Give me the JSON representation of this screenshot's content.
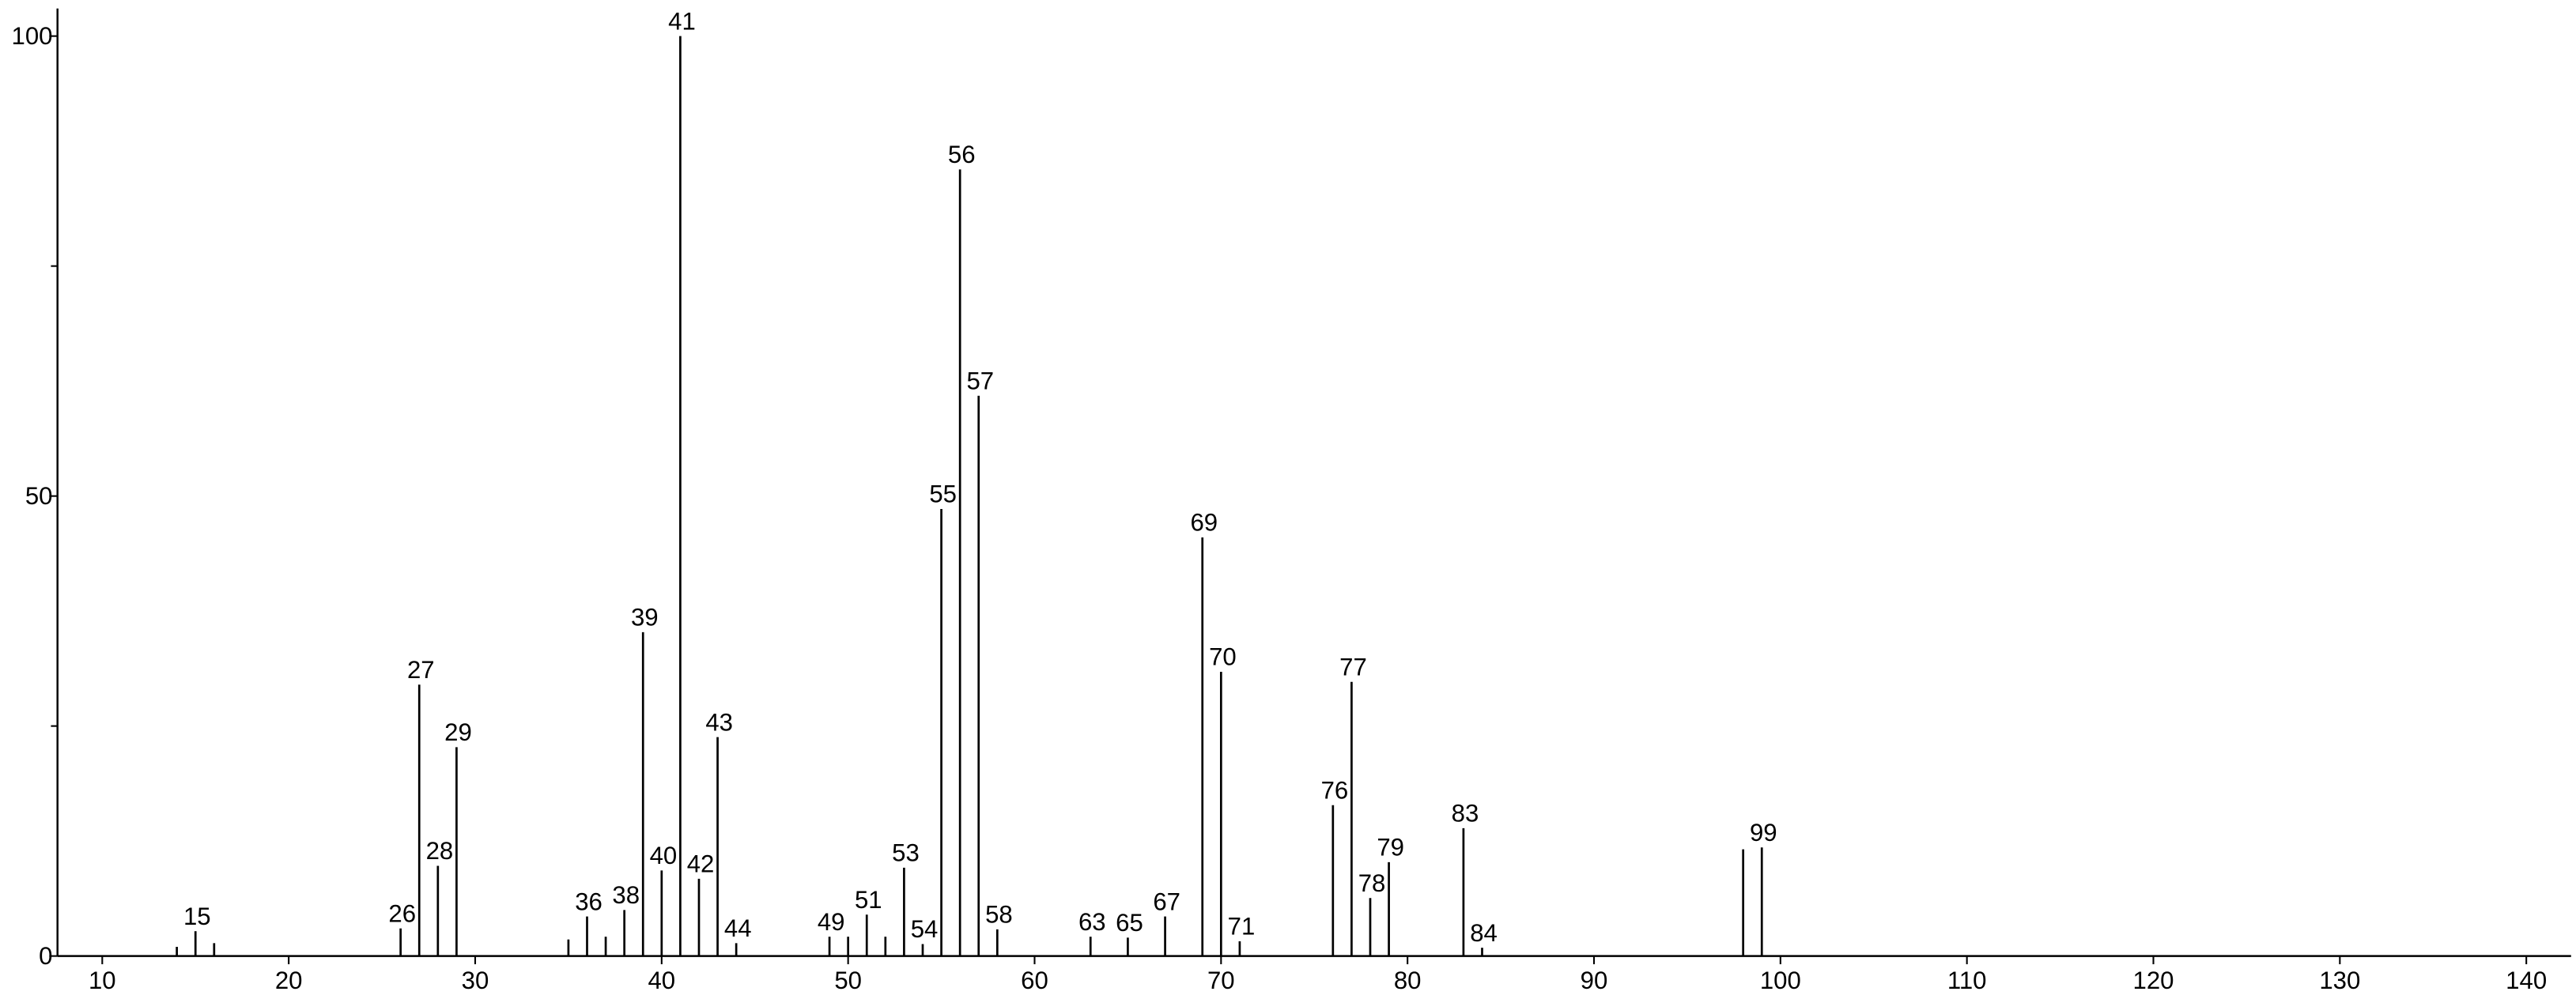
{
  "chart_data": {
    "type": "stick",
    "x": [
      14,
      15,
      16,
      26,
      27,
      28,
      29,
      35,
      36,
      37,
      38,
      39,
      40,
      41,
      42,
      43,
      44,
      49,
      50,
      51,
      52,
      53,
      54,
      55,
      56,
      57,
      58,
      63,
      65,
      67,
      69,
      70,
      71,
      76,
      77,
      78,
      79,
      83,
      84,
      98,
      99
    ],
    "values": [
      1,
      2.7,
      1.4,
      3,
      29.5,
      9.8,
      22.7,
      1.8,
      4.3,
      2.1,
      5,
      35.2,
      9.3,
      100,
      8.4,
      23.8,
      1.4,
      2.1,
      2.1,
      4.5,
      2.1,
      9.6,
      1.3,
      48.6,
      85.5,
      60.9,
      2.9,
      2.1,
      2,
      4.3,
      45.5,
      30.9,
      1.6,
      16.4,
      29.8,
      6.3,
      10.2,
      13.9,
      0.9,
      11.6,
      11.8
    ],
    "labels": [
      null,
      15,
      null,
      26,
      27,
      28,
      29,
      null,
      36,
      null,
      38,
      39,
      40,
      41,
      42,
      43,
      44,
      49,
      null,
      51,
      null,
      53,
      54,
      55,
      56,
      57,
      58,
      63,
      65,
      67,
      69,
      70,
      71,
      76,
      77,
      78,
      79,
      83,
      84,
      null,
      99
    ],
    "color": "#000000",
    "xlim": [
      7.6,
      142.4
    ],
    "xticks": [
      10,
      20,
      30,
      40,
      50,
      60,
      70,
      80,
      90,
      100,
      110,
      120,
      130,
      140
    ],
    "ylim": [
      0,
      103
    ],
    "yticks": [
      0,
      50,
      100
    ],
    "yminor": [
      25,
      75
    ],
    "grid": false
  }
}
